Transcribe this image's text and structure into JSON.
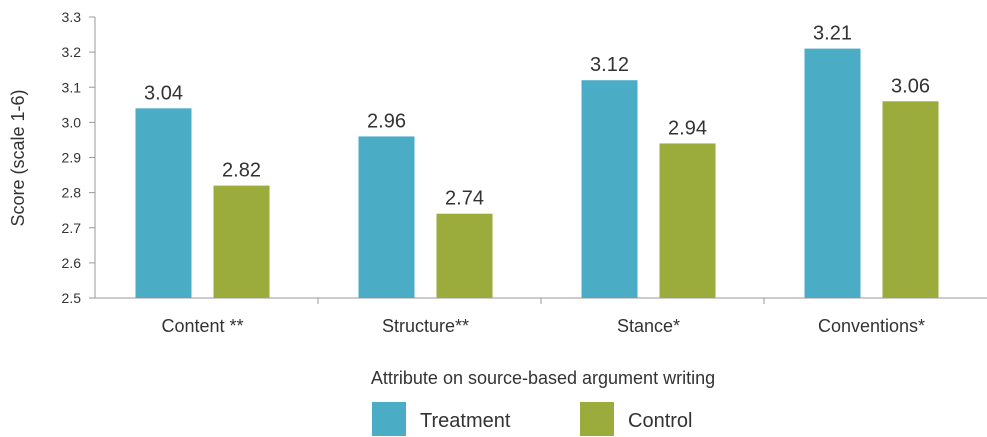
{
  "chart_data": {
    "type": "bar",
    "categories": [
      "Content **",
      "Structure**",
      "Stance*",
      "Conventions*"
    ],
    "series": [
      {
        "name": "Treatment",
        "color": "#4bacc6",
        "values": [
          3.04,
          2.96,
          3.12,
          3.21
        ]
      },
      {
        "name": "Control",
        "color": "#9bab3c",
        "values": [
          2.82,
          2.74,
          2.94,
          3.06
        ]
      }
    ],
    "title": "",
    "xlabel": "Attribute on source-based argument writing",
    "ylabel": "Score (scale 1-6)",
    "ylim": [
      2.5,
      3.3
    ],
    "yticks": [
      "2.5",
      "2.6",
      "2.7",
      "2.8",
      "2.9",
      "3.0",
      "3.1",
      "3.2",
      "3.3"
    ],
    "grid": false,
    "legend_position": "bottom"
  }
}
